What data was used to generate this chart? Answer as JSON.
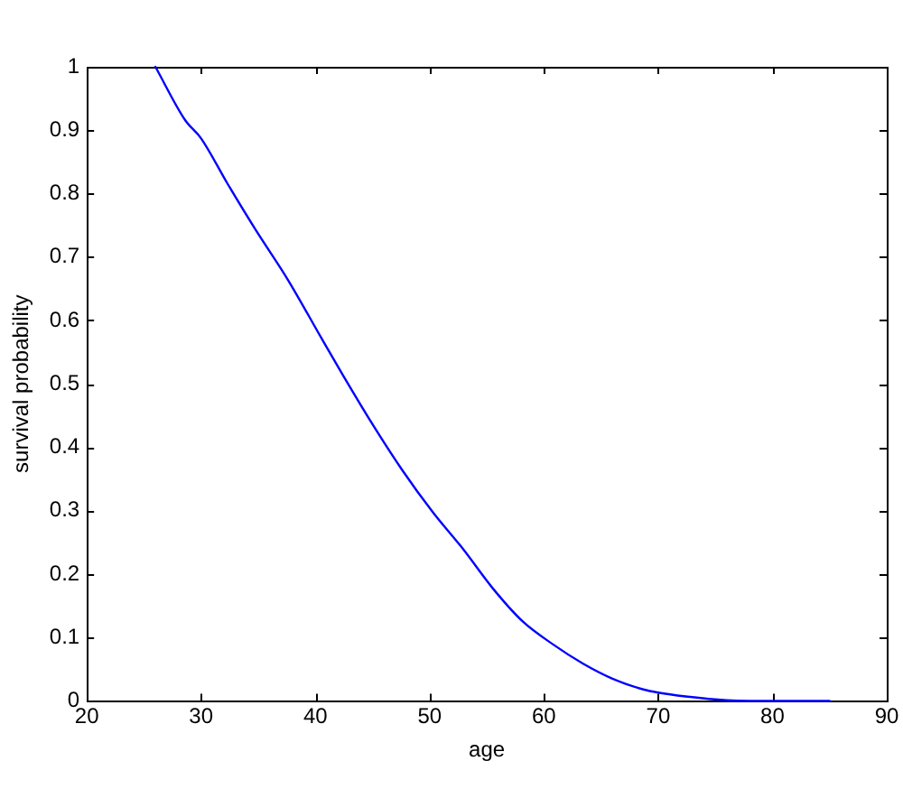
{
  "chart_data": {
    "type": "line",
    "xlabel": "age",
    "ylabel": "survival probability",
    "x": [
      26,
      28.6,
      30,
      32.3,
      34.7,
      37.6,
      40.5,
      42.4,
      44.7,
      47.6,
      50.3,
      52.9,
      55.5,
      58.1,
      60.8,
      63.4,
      66,
      68.7,
      70,
      72.4,
      76,
      78,
      85
    ],
    "series": [
      {
        "color": "#0000ff",
        "values": [
          1.0,
          0.916,
          0.887,
          0.816,
          0.745,
          0.664,
          0.573,
          0.514,
          0.445,
          0.364,
          0.297,
          0.24,
          0.178,
          0.126,
          0.089,
          0.059,
          0.035,
          0.018,
          0.013,
          0.007,
          0.001,
          0,
          0
        ]
      }
    ],
    "xlim": [
      20,
      90
    ],
    "xticks": [
      20,
      30,
      40,
      50,
      60,
      70,
      80,
      90
    ],
    "ylim": [
      0,
      1
    ],
    "yticks": [
      0,
      0.1,
      0.2,
      0.3,
      0.4,
      0.5,
      0.6,
      0.7,
      0.8,
      0.9,
      1
    ]
  }
}
